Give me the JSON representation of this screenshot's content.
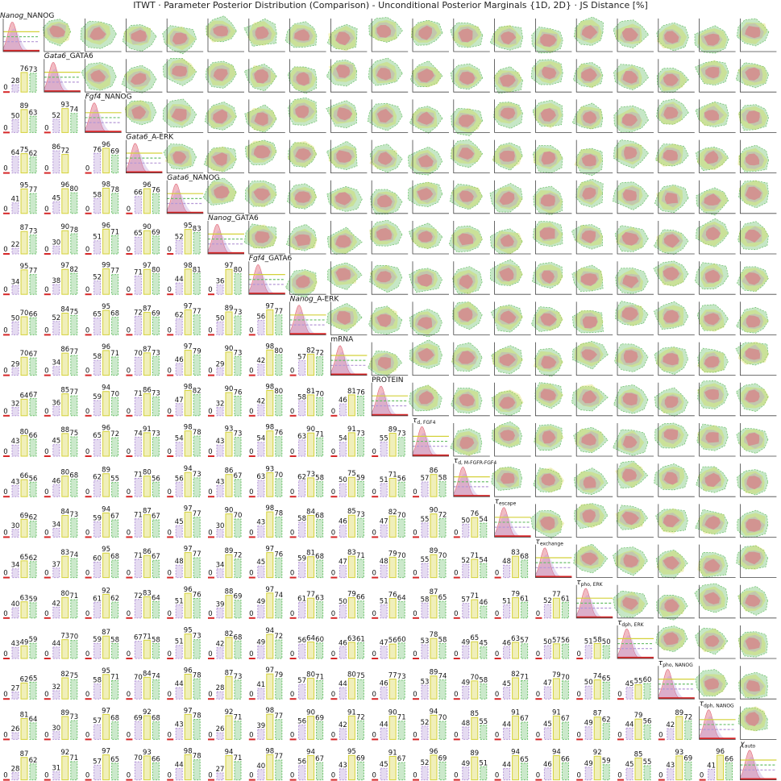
{
  "chart_data": {
    "type": "corner-plot",
    "title": "ITWT · Parameter Posterior Distribution (Comparison) - Unconditional Posterior Marginals {1D, 2D} · JS Distance [%]",
    "colors": {
      "pink": "#e0697a",
      "purple": "#b497d6",
      "green": "#6abf69",
      "yellow": "#d4d23a",
      "red": "#d62728",
      "axis": "#444444"
    },
    "parameters": [
      {
        "italic": "Nanog",
        "rest": "_NANOG"
      },
      {
        "italic": "Gata6",
        "rest": "_GATA6"
      },
      {
        "italic": "Fgf4",
        "rest": "_NANOG"
      },
      {
        "italic": "Gata6",
        "rest": "_A-ERK"
      },
      {
        "italic": "Gata6",
        "rest": "_NANOG"
      },
      {
        "italic": "Nanog",
        "rest": "_GATA6"
      },
      {
        "italic": "Fgf4",
        "rest": "_GATA6"
      },
      {
        "italic": "Nanog",
        "rest": "_A-ERK"
      },
      {
        "italic": "",
        "rest": "mRNA"
      },
      {
        "italic": "",
        "rest": "PROTEIN"
      },
      {
        "italic": "τ",
        "rest": "",
        "sub": "d, FGF4"
      },
      {
        "italic": "τ",
        "rest": "",
        "sub": "d, M-FGFR-FGF4"
      },
      {
        "italic": "τ",
        "rest": "",
        "sub": "escape"
      },
      {
        "italic": "τ",
        "rest": "",
        "sub": "exchange"
      },
      {
        "italic": "τ",
        "rest": "",
        "sub": "pho, ERK"
      },
      {
        "italic": "τ",
        "rest": "",
        "sub": "dph, ERK"
      },
      {
        "italic": "τ",
        "rest": "",
        "sub": "pho, NANOG"
      },
      {
        "italic": "τ",
        "rest": "",
        "sub": "dph, NANOG"
      },
      {
        "italic": "χ",
        "rest": "",
        "sub": "auto"
      }
    ],
    "js_distance": [
      [],
      [
        [
          28,
          76,
          73
        ]
      ],
      [
        [
          50,
          89,
          63
        ],
        [
          52,
          93,
          74
        ]
      ],
      [
        [
          64,
          75,
          62
        ],
        [
          86,
          72,
          null
        ],
        [
          76,
          96,
          69
        ]
      ],
      [
        [
          41,
          95,
          77
        ],
        [
          45,
          96,
          80
        ],
        [
          58,
          98,
          78
        ],
        [
          66,
          96,
          76
        ]
      ],
      [
        [
          22,
          87,
          73
        ],
        [
          30,
          90,
          78
        ],
        [
          51,
          96,
          71
        ],
        [
          65,
          90,
          69
        ],
        [
          52,
          95,
          83
        ]
      ],
      [
        [
          34,
          95,
          77
        ],
        [
          38,
          97,
          82
        ],
        [
          52,
          99,
          77
        ],
        [
          71,
          97,
          80
        ],
        [
          44,
          98,
          81
        ],
        [
          36,
          97,
          80
        ]
      ],
      [
        [
          50,
          70,
          66
        ],
        [
          52,
          84,
          75
        ],
        [
          65,
          95,
          68
        ],
        [
          72,
          87,
          69
        ],
        [
          62,
          97,
          77
        ],
        [
          50,
          89,
          73
        ],
        [
          56,
          97,
          77
        ]
      ],
      [
        [
          29,
          70,
          67
        ],
        [
          34,
          86,
          77
        ],
        [
          58,
          96,
          71
        ],
        [
          70,
          87,
          73
        ],
        [
          46,
          97,
          79
        ],
        [
          29,
          90,
          73
        ],
        [
          42,
          98,
          80
        ],
        [
          57,
          82,
          72
        ]
      ],
      [
        [
          32,
          64,
          67
        ],
        [
          36,
          85,
          77
        ],
        [
          59,
          94,
          70
        ],
        [
          71,
          86,
          73
        ],
        [
          47,
          98,
          82
        ],
        [
          32,
          90,
          76
        ],
        [
          42,
          98,
          80
        ],
        [
          58,
          81,
          70
        ],
        [
          46,
          81,
          76
        ]
      ],
      [
        [
          43,
          80,
          66
        ],
        [
          45,
          88,
          75
        ],
        [
          65,
          96,
          72
        ],
        [
          74,
          91,
          73
        ],
        [
          54,
          98,
          78
        ],
        [
          43,
          93,
          73
        ],
        [
          54,
          98,
          76
        ],
        [
          63,
          90,
          71
        ],
        [
          54,
          91,
          73
        ],
        [
          55,
          89,
          73
        ]
      ],
      [
        [
          43,
          66,
          56
        ],
        [
          46,
          80,
          68
        ],
        [
          62,
          89,
          55
        ],
        [
          71,
          80,
          56
        ],
        [
          56,
          94,
          73
        ],
        [
          43,
          86,
          67
        ],
        [
          63,
          93,
          70
        ],
        [
          62,
          73,
          58
        ],
        [
          50,
          75,
          59
        ],
        [
          51,
          71,
          56
        ],
        [
          57,
          86,
          58
        ]
      ],
      [
        [
          30,
          69,
          62
        ],
        [
          34,
          84,
          73
        ],
        [
          59,
          94,
          67
        ],
        [
          71,
          87,
          67
        ],
        [
          45,
          97,
          77
        ],
        [
          30,
          90,
          70
        ],
        [
          43,
          98,
          78
        ],
        [
          58,
          84,
          68
        ],
        [
          46,
          85,
          73
        ],
        [
          47,
          82,
          70
        ],
        [
          55,
          90,
          72
        ],
        [
          50,
          76,
          54
        ]
      ],
      [
        [
          34,
          65,
          62
        ],
        [
          37,
          83,
          74
        ],
        [
          60,
          95,
          68
        ],
        [
          71,
          86,
          67
        ],
        [
          48,
          97,
          77
        ],
        [
          34,
          89,
          72
        ],
        [
          45,
          97,
          76
        ],
        [
          59,
          81,
          68
        ],
        [
          47,
          83,
          71
        ],
        [
          48,
          79,
          70
        ],
        [
          55,
          89,
          70
        ],
        [
          52,
          71,
          54
        ],
        [
          48,
          83,
          68
        ]
      ],
      [
        [
          40,
          63,
          59
        ],
        [
          42,
          80,
          71
        ],
        [
          61,
          92,
          62
        ],
        [
          72,
          83,
          64
        ],
        [
          51,
          96,
          76
        ],
        [
          39,
          88,
          69
        ],
        [
          49,
          97,
          74
        ],
        [
          61,
          77,
          63
        ],
        [
          50,
          79,
          66
        ],
        [
          51,
          76,
          64
        ],
        [
          58,
          87,
          65
        ],
        [
          57,
          71,
          46
        ],
        [
          51,
          79,
          61
        ],
        [
          52,
          77,
          61
        ]
      ],
      [
        [
          43,
          49,
          59
        ],
        [
          44,
          73,
          70
        ],
        [
          59,
          87,
          58
        ],
        [
          67,
          71,
          58
        ],
        [
          51,
          95,
          73
        ],
        [
          42,
          82,
          68
        ],
        [
          49,
          94,
          72
        ],
        [
          56,
          64,
          60
        ],
        [
          46,
          63,
          61
        ],
        [
          47,
          56,
          60
        ],
        [
          53,
          78,
          58
        ],
        [
          49,
          65,
          45
        ],
        [
          46,
          63,
          57
        ],
        [
          50,
          57,
          56
        ],
        [
          51,
          58,
          50
        ]
      ],
      [
        [
          27,
          62,
          65
        ],
        [
          32,
          82,
          75
        ],
        [
          58,
          95,
          71
        ],
        [
          70,
          84,
          74
        ],
        [
          44,
          96,
          78
        ],
        [
          28,
          87,
          73
        ],
        [
          41,
          97,
          79
        ],
        [
          57,
          80,
          71
        ],
        [
          44,
          80,
          75
        ],
        [
          46,
          77,
          73
        ],
        [
          53,
          89,
          74
        ],
        [
          49,
          70,
          58
        ],
        [
          45,
          82,
          71
        ],
        [
          47,
          79,
          70
        ],
        [
          50,
          74,
          65
        ],
        [
          45,
          55,
          60
        ]
      ],
      [
        [
          26,
          81,
          64
        ],
        [
          30,
          89,
          73
        ],
        [
          57,
          97,
          68
        ],
        [
          69,
          92,
          68
        ],
        [
          43,
          97,
          78
        ],
        [
          26,
          92,
          71
        ],
        [
          39,
          98,
          77
        ],
        [
          56,
          90,
          69
        ],
        [
          42,
          91,
          72
        ],
        [
          44,
          90,
          71
        ],
        [
          52,
          94,
          70
        ],
        [
          48,
          85,
          55
        ],
        [
          44,
          91,
          67
        ],
        [
          45,
          91,
          67
        ],
        [
          49,
          87,
          62
        ],
        [
          44,
          79,
          56
        ],
        [
          42,
          89,
          72
        ]
      ],
      [
        [
          28,
          87,
          62
        ],
        [
          31,
          92,
          71
        ],
        [
          57,
          97,
          65
        ],
        [
          70,
          93,
          66
        ],
        [
          44,
          98,
          78
        ],
        [
          27,
          94,
          71
        ],
        [
          40,
          98,
          77
        ],
        [
          56,
          94,
          67
        ],
        [
          43,
          95,
          69
        ],
        [
          45,
          91,
          67
        ],
        [
          52,
          96,
          69
        ],
        [
          49,
          89,
          51
        ],
        [
          44,
          94,
          65
        ],
        [
          46,
          94,
          66
        ],
        [
          49,
          92,
          59
        ],
        [
          45,
          85,
          55
        ],
        [
          43,
          93,
          69
        ],
        [
          41,
          96,
          66
        ]
      ]
    ]
  }
}
